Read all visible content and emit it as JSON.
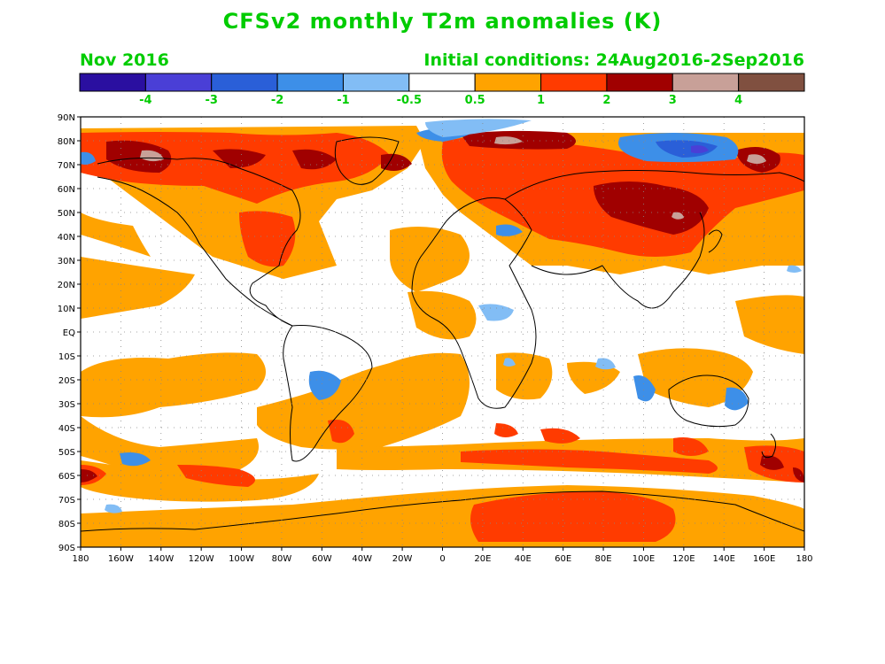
{
  "title": "CFSv2 monthly T2m anomalies (K)",
  "valid_month": "Nov 2016",
  "initial_conditions": "Initial conditions: 24Aug2016-2Sep2016",
  "colorbar": {
    "colors": [
      "#2a0fa0",
      "#4a3fd6",
      "#2a5fd8",
      "#3d8fe8",
      "#82bdf5",
      "#ffffff",
      "#ffa300",
      "#ff3b00",
      "#a00000",
      "#c8a098",
      "#805040"
    ],
    "labels": [
      "-4",
      "-3",
      "-2",
      "-1",
      "-0.5",
      "0.5",
      "1",
      "2",
      "3",
      "4"
    ]
  },
  "lat_labels": [
    "90N",
    "80N",
    "70N",
    "60N",
    "50N",
    "40N",
    "30N",
    "20N",
    "10N",
    "EQ",
    "10S",
    "20S",
    "30S",
    "40S",
    "50S",
    "60S",
    "70S",
    "80S",
    "90S"
  ],
  "lon_labels": [
    "180",
    "160W",
    "140W",
    "120W",
    "100W",
    "80W",
    "60W",
    "40W",
    "20W",
    "0",
    "20E",
    "40E",
    "60E",
    "80E",
    "100E",
    "120E",
    "140E",
    "160E",
    "180"
  ]
}
